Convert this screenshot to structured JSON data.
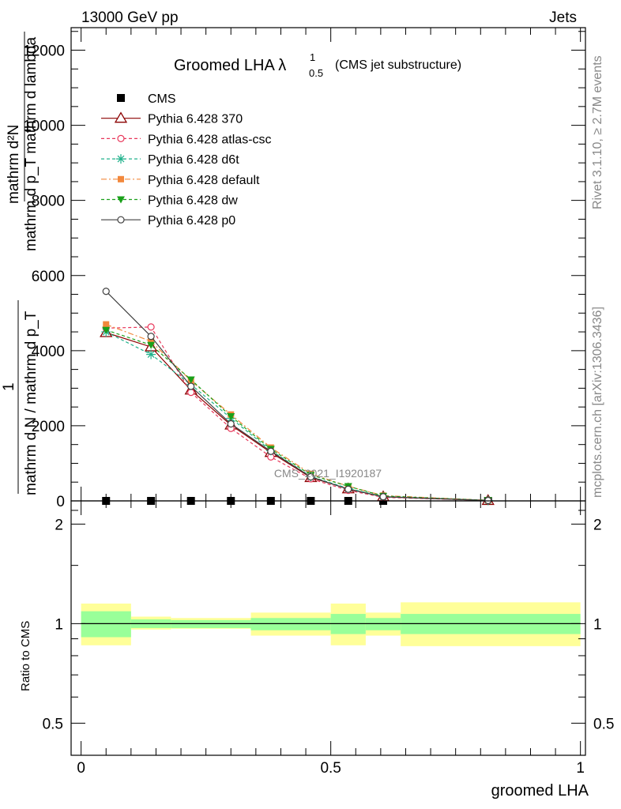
{
  "header": {
    "left": "13000 GeV pp",
    "right": "Jets"
  },
  "title": {
    "main": "Groomed LHA ",
    "lambda": "λ",
    "sup": "1",
    "sub": "0.5",
    "paren": "(CMS jet substructure)"
  },
  "side_labels": {
    "rivet": "Rivet 3.1.10, ≥ 2.7M events",
    "mcplots": "mcplots.cern.ch [arXiv:1306.3436]"
  },
  "watermark": "CMS_2021_I1920187",
  "ylabel_main": {
    "numerator": "mathrm d²N",
    "denominator": "mathrm d p_T mathrm d lambda",
    "one": "1",
    "n_label": "mathrm d N / mathrm d p_T",
    "frac_top": "mathrm d²N",
    "frac_bot": "mathrm d p_T mathrm d lambda"
  },
  "ylabel_ratio": "Ratio to CMS",
  "xlabel": "groomed LHA",
  "colors": {
    "cms": "#000000",
    "p370": "#8b0000",
    "atlas": "#e8375a",
    "d6t": "#20b28c",
    "default": "#f2883c",
    "dw": "#1aa01a",
    "p0": "#404040",
    "band_inner": "#99ff99",
    "band_outer": "#ffff99"
  },
  "chart_data": [
    {
      "type": "line",
      "panel": "main",
      "x": [
        0.05,
        0.14,
        0.22,
        0.3,
        0.38,
        0.46,
        0.535,
        0.605,
        0.815
      ],
      "xlim": [
        -0.02,
        1.01
      ],
      "ylim": [
        0,
        12600
      ],
      "yticks": [
        0,
        2000,
        4000,
        6000,
        8000,
        10000,
        12000
      ],
      "ytick_labels": [
        "0",
        "2000",
        "4000",
        "6000",
        "8000",
        "10000",
        "12000"
      ],
      "series": [
        {
          "name": "CMS",
          "key": "cms",
          "marker": "square",
          "values": [
            0,
            0,
            0,
            0,
            0,
            0,
            0,
            0,
            0
          ]
        },
        {
          "name": "Pythia 6.428 370",
          "key": "p370",
          "marker": "triangle-open",
          "dash": "",
          "values": [
            4480,
            4100,
            2950,
            2020,
            1290,
            620,
            320,
            110,
            10
          ]
        },
        {
          "name": "Pythia 6.428 atlas-csc",
          "key": "atlas",
          "marker": "circle-open",
          "dash": "4,3",
          "values": [
            4600,
            4630,
            2890,
            1930,
            1170,
            590,
            280,
            95,
            10
          ]
        },
        {
          "name": "Pythia 6.428 d6t",
          "key": "d6t",
          "marker": "star",
          "dash": "4,3",
          "values": [
            4500,
            3900,
            3100,
            2200,
            1340,
            650,
            330,
            115,
            10
          ]
        },
        {
          "name": "Pythia 6.428 default",
          "key": "default",
          "marker": "square-small",
          "dash": "7,3,2,3",
          "values": [
            4700,
            4250,
            3200,
            2300,
            1420,
            720,
            390,
            140,
            15
          ]
        },
        {
          "name": "Pythia 6.428 dw",
          "key": "dw",
          "marker": "triangle-down",
          "dash": "4,3",
          "values": [
            4550,
            4150,
            3230,
            2250,
            1380,
            690,
            390,
            130,
            15
          ]
        },
        {
          "name": "Pythia 6.428 p0",
          "key": "p0",
          "marker": "circle-open",
          "dash": "",
          "values": [
            5580,
            4380,
            3050,
            2050,
            1320,
            640,
            310,
            110,
            10
          ]
        }
      ]
    },
    {
      "type": "area",
      "panel": "ratio",
      "xlim": [
        -0.02,
        1.01
      ],
      "ylim": [
        0.4,
        2.35
      ],
      "ytick_labels": [
        "0.5",
        "1",
        "2"
      ],
      "yticks": [
        0.5,
        1,
        2
      ],
      "xticks": [
        0,
        0.5,
        1
      ],
      "xtick_labels": [
        "0",
        "0.5",
        "1"
      ],
      "bins": [
        {
          "x0": 0.0,
          "x1": 0.1,
          "inner": [
            0.91,
            1.09
          ],
          "outer": [
            0.86,
            1.15
          ]
        },
        {
          "x0": 0.1,
          "x1": 0.18,
          "inner": [
            0.97,
            1.03
          ],
          "outer": [
            0.96,
            1.05
          ]
        },
        {
          "x0": 0.18,
          "x1": 0.34,
          "inner": [
            0.97,
            1.025
          ],
          "outer": [
            0.965,
            1.04
          ]
        },
        {
          "x0": 0.34,
          "x1": 0.5,
          "inner": [
            0.955,
            1.04
          ],
          "outer": [
            0.92,
            1.08
          ]
        },
        {
          "x0": 0.5,
          "x1": 0.57,
          "inner": [
            0.93,
            1.07
          ],
          "outer": [
            0.86,
            1.15
          ]
        },
        {
          "x0": 0.57,
          "x1": 0.64,
          "inner": [
            0.955,
            1.04
          ],
          "outer": [
            0.92,
            1.08
          ]
        },
        {
          "x0": 0.64,
          "x1": 1.0,
          "inner": [
            0.93,
            1.07
          ],
          "outer": [
            0.855,
            1.16
          ]
        }
      ],
      "reference": 1
    }
  ]
}
